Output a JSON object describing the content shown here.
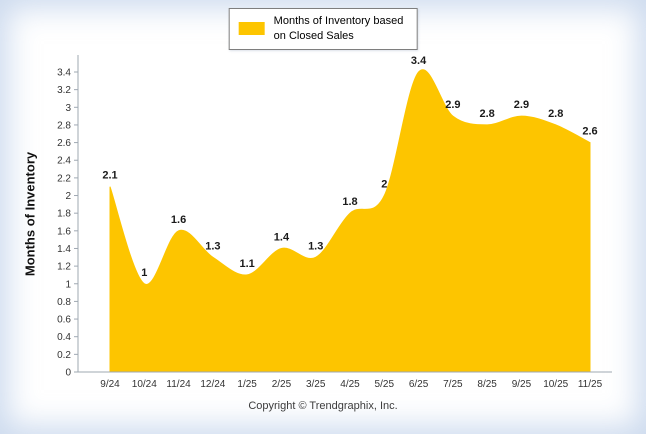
{
  "legend": {
    "line1": "Months of Inventory based",
    "line2": "on Closed Sales"
  },
  "footer": "Copyright © Trendgraphix, Inc.",
  "chart_data": {
    "type": "area",
    "title": "",
    "xlabel": "",
    "ylabel": "Months of Inventory",
    "legend": "Months of Inventory based on Closed Sales",
    "legend_position": "top",
    "grid": false,
    "categories": [
      "9/24",
      "10/24",
      "11/24",
      "12/24",
      "1/25",
      "2/25",
      "3/25",
      "4/25",
      "5/25",
      "6/25",
      "7/25",
      "8/25",
      "9/25",
      "10/25",
      "11/25"
    ],
    "values": [
      2.1,
      1,
      1.6,
      1.3,
      1.1,
      1.4,
      1.3,
      1.8,
      2,
      3.4,
      2.9,
      2.8,
      2.9,
      2.8,
      2.6
    ],
    "ylim": [
      0,
      3.4
    ],
    "ytick_step": 0.2,
    "fill_color": "#FDC500",
    "axis_color": "#9fa8b2",
    "tick_text_color": "#333333",
    "data_label_color": "#1a1a1a"
  }
}
